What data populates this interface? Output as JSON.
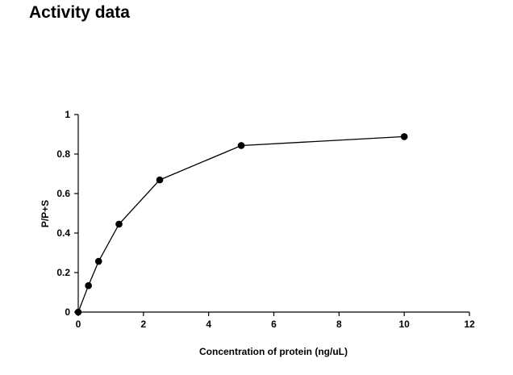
{
  "page": {
    "title": "Activity data"
  },
  "chart_data": {
    "type": "line",
    "title": "",
    "xlabel": "Concentration of protein (ng/uL)",
    "ylabel": "P/P+S",
    "xlim": [
      0,
      12
    ],
    "ylim": [
      0,
      1
    ],
    "xticks": [
      0,
      2,
      4,
      6,
      8,
      10,
      12
    ],
    "yticks": [
      0,
      0.2,
      0.4,
      0.6,
      0.8,
      1
    ],
    "grid": false,
    "legend": "none",
    "series": [
      {
        "marker": "circle",
        "color": "#000000",
        "points": [
          {
            "x": 0,
            "y": 0
          },
          {
            "x": 0.3125,
            "y": 0.134
          },
          {
            "x": 0.625,
            "y": 0.257
          },
          {
            "x": 1.25,
            "y": 0.445
          },
          {
            "x": 2.5,
            "y": 0.669
          },
          {
            "x": 5,
            "y": 0.843
          },
          {
            "x": 10,
            "y": 0.888
          }
        ]
      }
    ]
  }
}
